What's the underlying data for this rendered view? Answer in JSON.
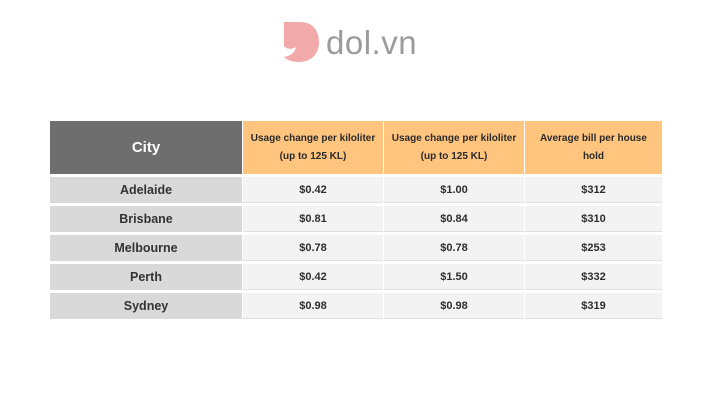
{
  "logo": {
    "text": "dol.vn"
  },
  "table": {
    "headers": [
      "City",
      "Usage change per kiloliter (up to 125 KL)",
      "Usage change per kiloliter (up to 125 KL)",
      "Average bill per house hold"
    ],
    "rows": [
      {
        "city": "Adelaide",
        "col1": "$0.42",
        "col2": "$1.00",
        "col3": "$312"
      },
      {
        "city": "Brisbane",
        "col1": "$0.81",
        "col2": "$0.84",
        "col3": "$310"
      },
      {
        "city": "Melbourne",
        "col1": "$0.78",
        "col2": "$0.78",
        "col3": "$253"
      },
      {
        "city": "Perth",
        "col1": "$0.42",
        "col2": "$1.50",
        "col3": "$332"
      },
      {
        "city": "Sydney",
        "col1": "$0.98",
        "col2": "$0.98",
        "col3": "$319"
      }
    ]
  },
  "colors": {
    "header_city": "#6e6e6e",
    "header_cols": "#ffc47e",
    "city_cells": "#d9d9d9",
    "value_cells": "#f3f3f3",
    "logo_mark": "#f1a9a9"
  }
}
